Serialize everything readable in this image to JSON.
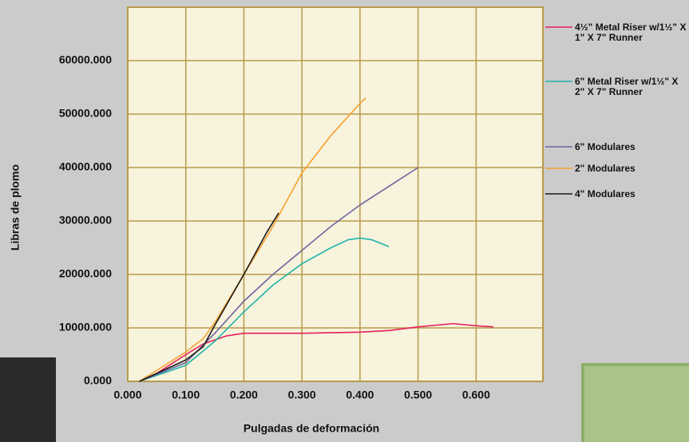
{
  "chart_data": {
    "type": "line",
    "x_label": "Pulgadas de deformación",
    "y_label": "Libras de plomo",
    "xlim": [
      0,
      0.715
    ],
    "ylim": [
      0,
      70000
    ],
    "xticks": [
      {
        "value": 0,
        "label": "0.000"
      },
      {
        "value": 0.1,
        "label": "0.100"
      },
      {
        "value": 0.2,
        "label": "0.200"
      },
      {
        "value": 0.3,
        "label": "0.300"
      },
      {
        "value": 0.4,
        "label": "0.400"
      },
      {
        "value": 0.5,
        "label": "0.500"
      },
      {
        "value": 0.6,
        "label": "0.600"
      }
    ],
    "yticks": [
      {
        "value": 0,
        "label": "0.000"
      },
      {
        "value": 10000,
        "label": "10000.000"
      },
      {
        "value": 20000,
        "label": "20000.000"
      },
      {
        "value": 30000,
        "label": "30000.000"
      },
      {
        "value": 40000,
        "label": "40000.000"
      },
      {
        "value": 50000,
        "label": "50000.000"
      },
      {
        "value": 60000,
        "label": "60000.000"
      }
    ],
    "grid": true,
    "legend": "right",
    "series": [
      {
        "name": "4½\" Metal Riser w/1½\" X 1\" X 7\" Runner",
        "color": "#e8205a",
        "x": [
          0.02,
          0.05,
          0.1,
          0.13,
          0.17,
          0.2,
          0.3,
          0.4,
          0.45,
          0.5,
          0.56,
          0.6,
          0.63
        ],
        "values": [
          0,
          1500,
          5000,
          7000,
          8500,
          9000,
          9000,
          9200,
          9500,
          10200,
          10800,
          10400,
          10200
        ]
      },
      {
        "name": "6\" Metal Riser w/1½\" X 2\" X 7\" Runner",
        "color": "#1fb5a8",
        "x": [
          0.02,
          0.1,
          0.15,
          0.2,
          0.25,
          0.3,
          0.35,
          0.38,
          0.4,
          0.42,
          0.45
        ],
        "values": [
          0,
          3000,
          7500,
          13000,
          18000,
          22000,
          25000,
          26500,
          26800,
          26500,
          25200
        ]
      },
      {
        "name": "6\" Modulares",
        "color": "#6e64a0",
        "x": [
          0.02,
          0.1,
          0.15,
          0.2,
          0.25,
          0.3,
          0.35,
          0.4,
          0.45,
          0.5
        ],
        "values": [
          0,
          3500,
          9000,
          15000,
          20000,
          24500,
          29000,
          33000,
          36500,
          40000
        ]
      },
      {
        "name": "2\" Modulares",
        "color": "#f7a030",
        "x": [
          0.02,
          0.1,
          0.13,
          0.15,
          0.2,
          0.25,
          0.3,
          0.35,
          0.4,
          0.41
        ],
        "values": [
          0,
          5500,
          8000,
          11000,
          20000,
          29000,
          39000,
          46000,
          52000,
          53000
        ]
      },
      {
        "name": "4\" Modulares",
        "color": "#1a1a1a",
        "x": [
          0.02,
          0.1,
          0.13,
          0.15,
          0.2,
          0.24,
          0.26
        ],
        "values": [
          0,
          4000,
          6500,
          10500,
          20000,
          28000,
          31500
        ]
      }
    ]
  }
}
